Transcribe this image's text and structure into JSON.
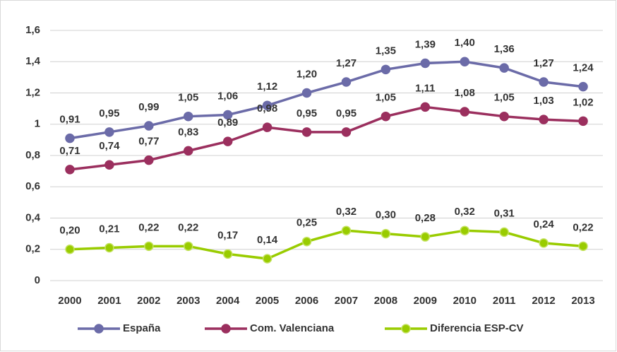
{
  "chart_data": {
    "type": "line",
    "categories": [
      "2000",
      "2001",
      "2002",
      "2003",
      "2004",
      "2005",
      "2006",
      "2007",
      "2008",
      "2009",
      "2010",
      "2011",
      "2012",
      "2013"
    ],
    "series": [
      {
        "name": "España",
        "color": "#6b6ba8",
        "values": [
          0.91,
          0.95,
          0.99,
          1.05,
          1.06,
          1.12,
          1.2,
          1.27,
          1.35,
          1.39,
          1.4,
          1.36,
          1.27,
          1.24
        ],
        "value_labels": [
          "0,91",
          "0,95",
          "0,99",
          "1,05",
          "1,06",
          "1,12",
          "1,20",
          "1,27",
          "1,35",
          "1,39",
          "1,40",
          "1,36",
          "1,27",
          "1,24"
        ]
      },
      {
        "name": "Com. Valenciana",
        "color": "#9b2f5e",
        "values": [
          0.71,
          0.74,
          0.77,
          0.83,
          0.89,
          0.98,
          0.95,
          0.95,
          1.05,
          1.11,
          1.08,
          1.05,
          1.03,
          1.02
        ],
        "value_labels": [
          "0,71",
          "0,74",
          "0,77",
          "0,83",
          "0,89",
          "0,98",
          "0,95",
          "0,95",
          "1,05",
          "1,11",
          "1,08",
          "1,05",
          "1,03",
          "1,02"
        ]
      },
      {
        "name": "Diferencia ESP-CV",
        "color": "#99cc00",
        "values": [
          0.2,
          0.21,
          0.22,
          0.22,
          0.17,
          0.14,
          0.25,
          0.32,
          0.3,
          0.28,
          0.32,
          0.31,
          0.24,
          0.22
        ],
        "value_labels": [
          "0,20",
          "0,21",
          "0,22",
          "0,22",
          "0,17",
          "0,14",
          "0,25",
          "0,32",
          "0,30",
          "0,28",
          "0,32",
          "0,31",
          "0,24",
          "0,22"
        ]
      }
    ],
    "ylim": [
      0,
      1.6
    ],
    "yticks": [
      0,
      {
        "value": 0.2,
        "label": "0,2"
      },
      {
        "value": 0.4,
        "label": "0,4"
      },
      {
        "value": 0.6,
        "label": "0,6"
      },
      {
        "value": 0.8,
        "label": "0,8"
      },
      1,
      {
        "value": 1.2,
        "label": "1,2"
      },
      {
        "value": 1.4,
        "label": "1,4"
      },
      {
        "value": 1.6,
        "label": "1,6"
      }
    ],
    "grid": true,
    "legend": "bottom"
  }
}
